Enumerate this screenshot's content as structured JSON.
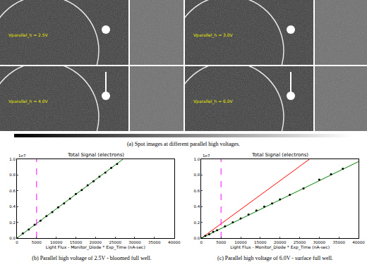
{
  "figure": {
    "images": [
      {
        "label": "Vparallel_h = 2.5V"
      },
      {
        "label": "Vparallel_h = 3.0V"
      },
      {
        "label": "Vparallel_h = 4.0V"
      },
      {
        "label": "Vparallel_h = 6.0V"
      }
    ],
    "captions": [
      "(a) Spot images at different parallel high voltages.",
      "(b) Parallel high voltage of 2.5V - bloomed full well.",
      "(c) Parallel high voltage of 6.0V - surface full well."
    ]
  },
  "chart_data": [
    {
      "type": "scatter",
      "title": "Total Signal (electrons)",
      "x_label": "Light Flux - Monitor_Diode * Exp_Time (nA-sec)",
      "annotations": [
        "1e7"
      ],
      "grid": false,
      "xlim": [
        0,
        40000
      ],
      "xticks": [
        0,
        5000,
        10000,
        15000,
        20000,
        25000,
        30000,
        35000,
        40000
      ],
      "ylim": [
        0,
        1.0
      ],
      "yticks": [
        {
          "value": 0,
          "label": "0.0"
        },
        {
          "value": 0.2,
          "label": "0.2"
        },
        {
          "value": 0.4,
          "label": "0.4"
        },
        {
          "value": 0.6,
          "label": "0.6"
        },
        {
          "value": 0.8,
          "label": "0.8"
        },
        {
          "value": 1.0,
          "label": "1.0"
        }
      ],
      "series": [
        {
          "type": "line",
          "color": "#008000",
          "line_style": "solid",
          "x": [
            0,
            27000
          ],
          "values": [
            0,
            1.0
          ]
        },
        {
          "type": "line",
          "color": "#ff00ff",
          "line_style": "dashed",
          "x": [
            5000,
            5000
          ],
          "values": [
            0,
            1.0
          ]
        },
        {
          "type": "scatter",
          "color": "#000000",
          "marker": "circle",
          "x": [
            0,
            1500,
            3000,
            4500,
            6000,
            7500,
            9000,
            10500,
            12000,
            13500,
            15000,
            16500,
            18000,
            19500,
            21000,
            22500,
            24000,
            25500
          ],
          "values": [
            0,
            0.06,
            0.11,
            0.17,
            0.22,
            0.28,
            0.33,
            0.39,
            0.44,
            0.5,
            0.56,
            0.61,
            0.67,
            0.72,
            0.78,
            0.83,
            0.89,
            0.94
          ]
        }
      ]
    },
    {
      "type": "scatter",
      "title": "Total Signal (electrons)",
      "x_label": "Light Flux - Monitor_Diode * Exp_Time (nA-sec)",
      "annotations": [
        "1e7"
      ],
      "grid": false,
      "xlim": [
        0,
        40000
      ],
      "xticks": [
        0,
        5000,
        10000,
        15000,
        20000,
        25000,
        30000,
        35000,
        40000
      ],
      "ylim": [
        0,
        1.0
      ],
      "yticks": [
        {
          "value": 0,
          "label": "0.0"
        },
        {
          "value": 0.2,
          "label": "0.2"
        },
        {
          "value": 0.4,
          "label": "0.4"
        },
        {
          "value": 0.6,
          "label": "0.6"
        },
        {
          "value": 0.8,
          "label": "0.8"
        },
        {
          "value": 1.0,
          "label": "1.0"
        }
      ],
      "series": [
        {
          "type": "line",
          "color": "#ff0000",
          "line_style": "solid",
          "x": [
            0,
            27500
          ],
          "values": [
            0,
            1.0
          ]
        },
        {
          "type": "line",
          "color": "#008000",
          "line_style": "solid",
          "x": [
            0,
            40000
          ],
          "values": [
            0,
            0.97
          ]
        },
        {
          "type": "line",
          "color": "#ff00ff",
          "line_style": "dashed",
          "x": [
            5000,
            5000
          ],
          "values": [
            0,
            1.0
          ]
        },
        {
          "type": "scatter",
          "color": "#000000",
          "marker": "circle",
          "x": [
            0,
            1000,
            2000,
            3000,
            4000,
            6000,
            8000,
            10000,
            12000,
            14000,
            16000,
            18000,
            20000,
            22500,
            26000,
            30000,
            33000,
            36000
          ],
          "values": [
            0,
            0.03,
            0.05,
            0.08,
            0.1,
            0.15,
            0.2,
            0.25,
            0.3,
            0.35,
            0.4,
            0.44,
            0.49,
            0.55,
            0.63,
            0.74,
            0.81,
            0.88
          ]
        }
      ]
    }
  ]
}
